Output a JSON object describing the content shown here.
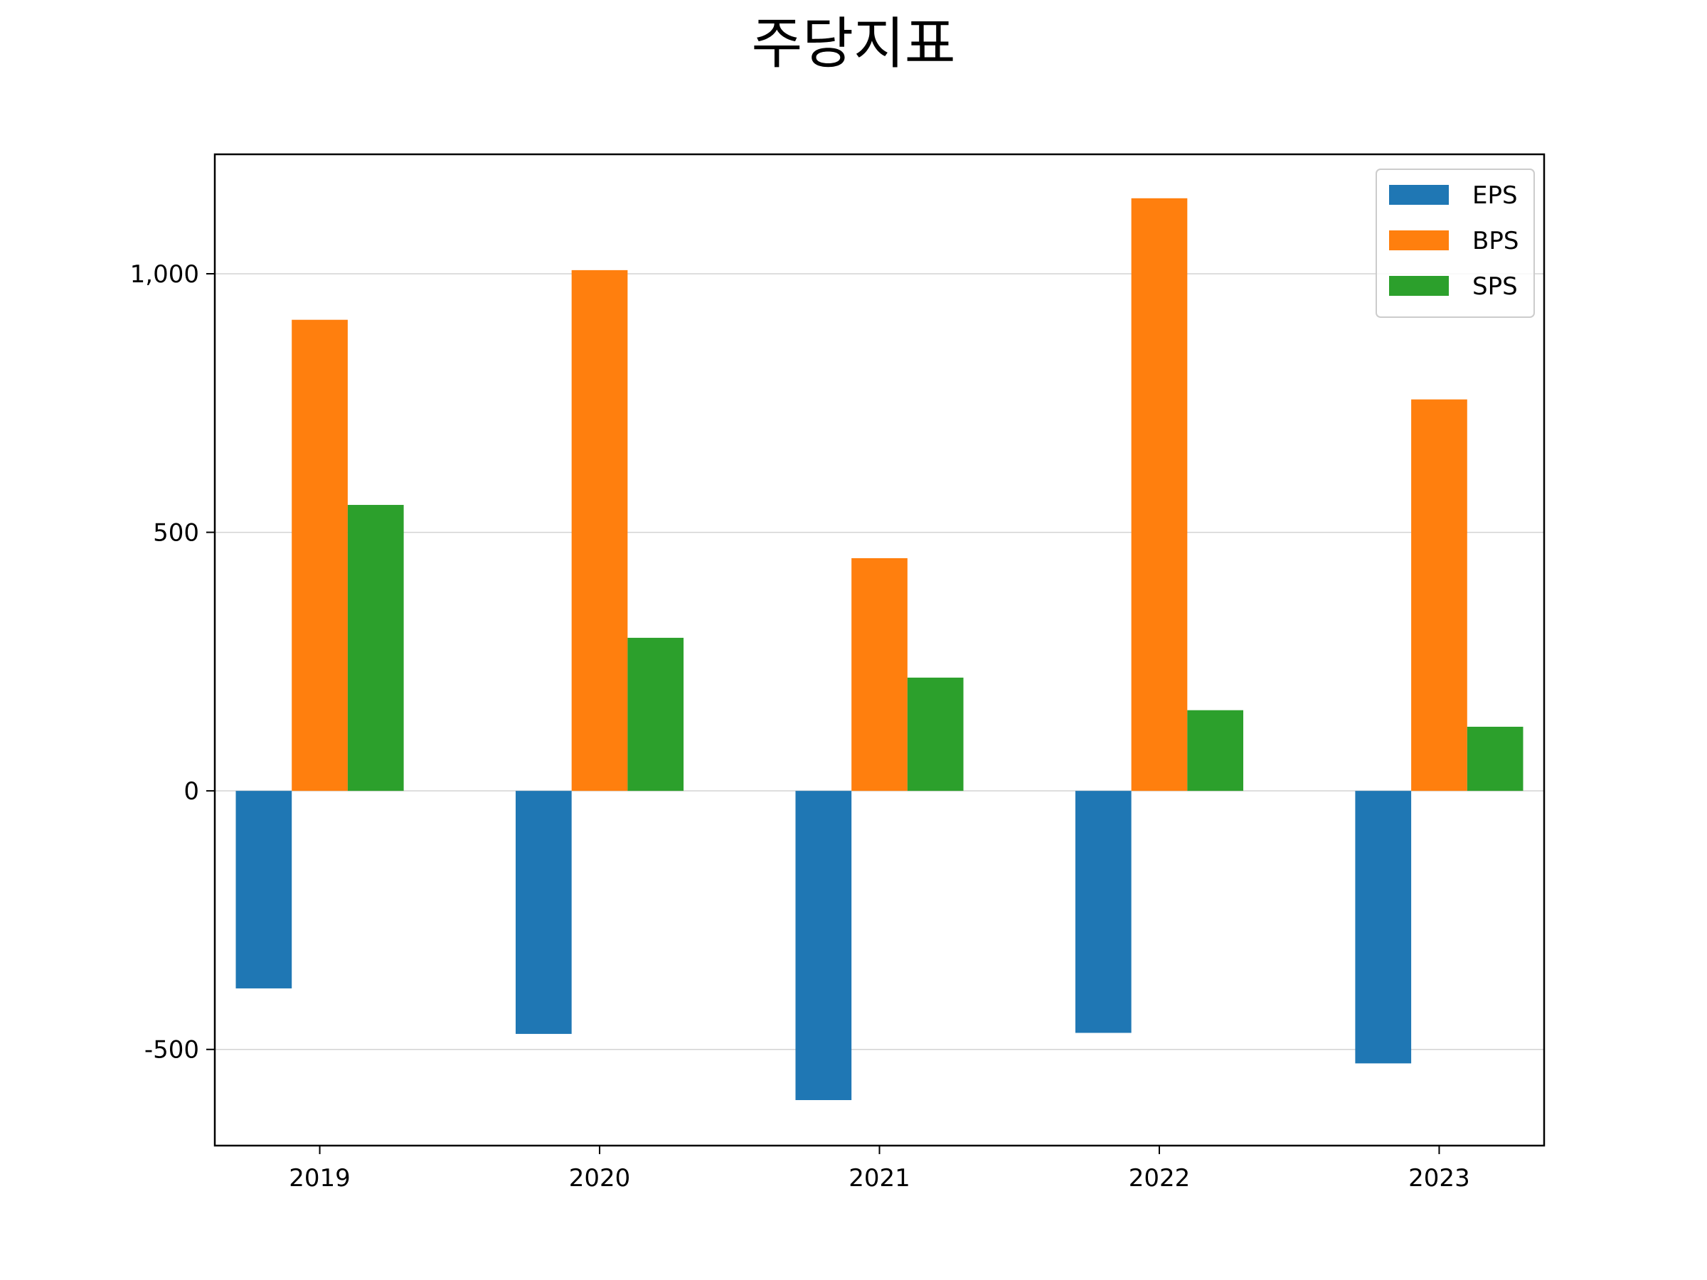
{
  "chart_data": {
    "type": "bar",
    "title": "주당지표",
    "xlabel": "",
    "ylabel": "",
    "categories": [
      "2019",
      "2020",
      "2021",
      "2022",
      "2023"
    ],
    "series": [
      {
        "name": "EPS",
        "color": "#1f77b4",
        "values": [
          -382,
          -470,
          -598,
          -468,
          -527
        ]
      },
      {
        "name": "BPS",
        "color": "#ff7f0e",
        "values": [
          911,
          1007,
          450,
          1146,
          757
        ]
      },
      {
        "name": "SPS",
        "color": "#2ca02c",
        "values": [
          553,
          296,
          219,
          156,
          124
        ]
      }
    ],
    "ylim": [
      -686,
      1231
    ],
    "yticks": [
      {
        "value": -500,
        "label": "-500"
      },
      {
        "value": 0,
        "label": "0"
      },
      {
        "value": 500,
        "label": "500"
      },
      {
        "value": 1000,
        "label": "1,000"
      }
    ],
    "grid": "horizontal",
    "legend": "top-right"
  }
}
